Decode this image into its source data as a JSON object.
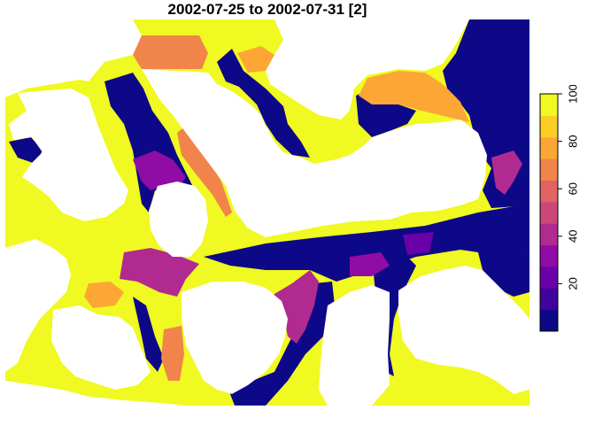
{
  "title": "2002-07-25 to 2002-07-31 [2]",
  "legend": {
    "min": 0,
    "max": 100,
    "ticks": [
      "20",
      "40",
      "60",
      "80",
      "100"
    ],
    "tick_values": [
      20,
      40,
      60,
      80,
      100
    ],
    "colors": [
      "#0D0887",
      "#3E049C",
      "#6A00A8",
      "#8F0DA4",
      "#B12A90",
      "#CC4778",
      "#E16462",
      "#F1844B",
      "#FCA636",
      "#FCCE25",
      "#F0F921"
    ]
  },
  "colors": {
    "land": "#FFFFFF",
    "ice_high": "#F0F921",
    "ice_low": "#0D0887"
  }
}
